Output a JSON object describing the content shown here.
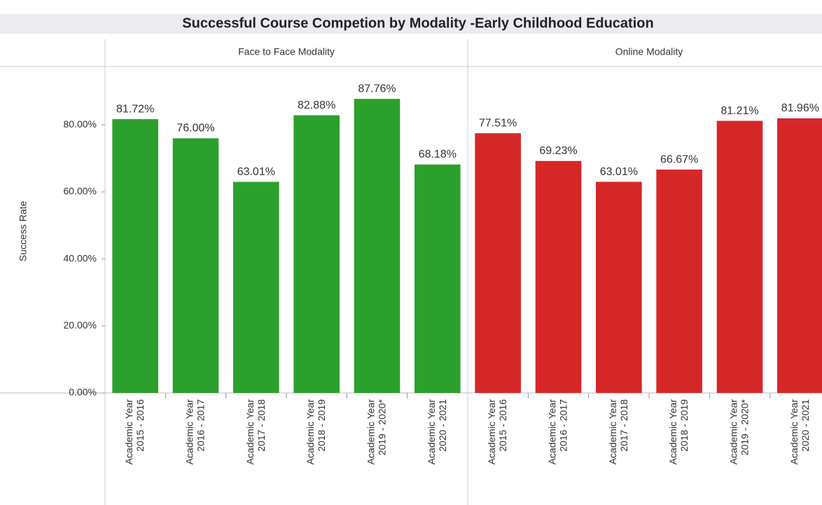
{
  "chart_data": {
    "type": "bar",
    "title": "Successful Course Competion by Modality -Early Childhood Education",
    "y_label": "Success Rate",
    "categories": [
      [
        "Academic Year",
        "2015 - 2016"
      ],
      [
        "Academic Year",
        "2016 - 2017"
      ],
      [
        "Academic Year",
        "2017 - 2018"
      ],
      [
        "Academic Year",
        "2018 - 2019"
      ],
      [
        "Academic Year",
        "2019 - 2020*"
      ],
      [
        "Academic Year",
        "2020 - 2021"
      ]
    ],
    "series": [
      {
        "name": "Face to Face Modality",
        "color": "#2ca02c",
        "values": [
          81.72,
          76.0,
          63.01,
          82.88,
          87.76,
          68.18
        ],
        "value_labels": [
          "81.72%",
          "76.00%",
          "63.01%",
          "82.88%",
          "87.76%",
          "68.18%"
        ]
      },
      {
        "name": "Online Modality",
        "color": "#d62728",
        "values": [
          77.51,
          69.23,
          63.01,
          66.67,
          81.21,
          81.96
        ],
        "value_labels": [
          "77.51%",
          "69.23%",
          "63.01%",
          "66.67%",
          "81.21%",
          "81.96%"
        ]
      }
    ],
    "ylim": [
      0,
      97
    ],
    "yticks": [
      {
        "value": 0,
        "label": "0.00%"
      },
      {
        "value": 20,
        "label": "20.00%"
      },
      {
        "value": 40,
        "label": "40.00%"
      },
      {
        "value": 60,
        "label": "60.00%"
      },
      {
        "value": 80,
        "label": "80.00%"
      }
    ]
  }
}
